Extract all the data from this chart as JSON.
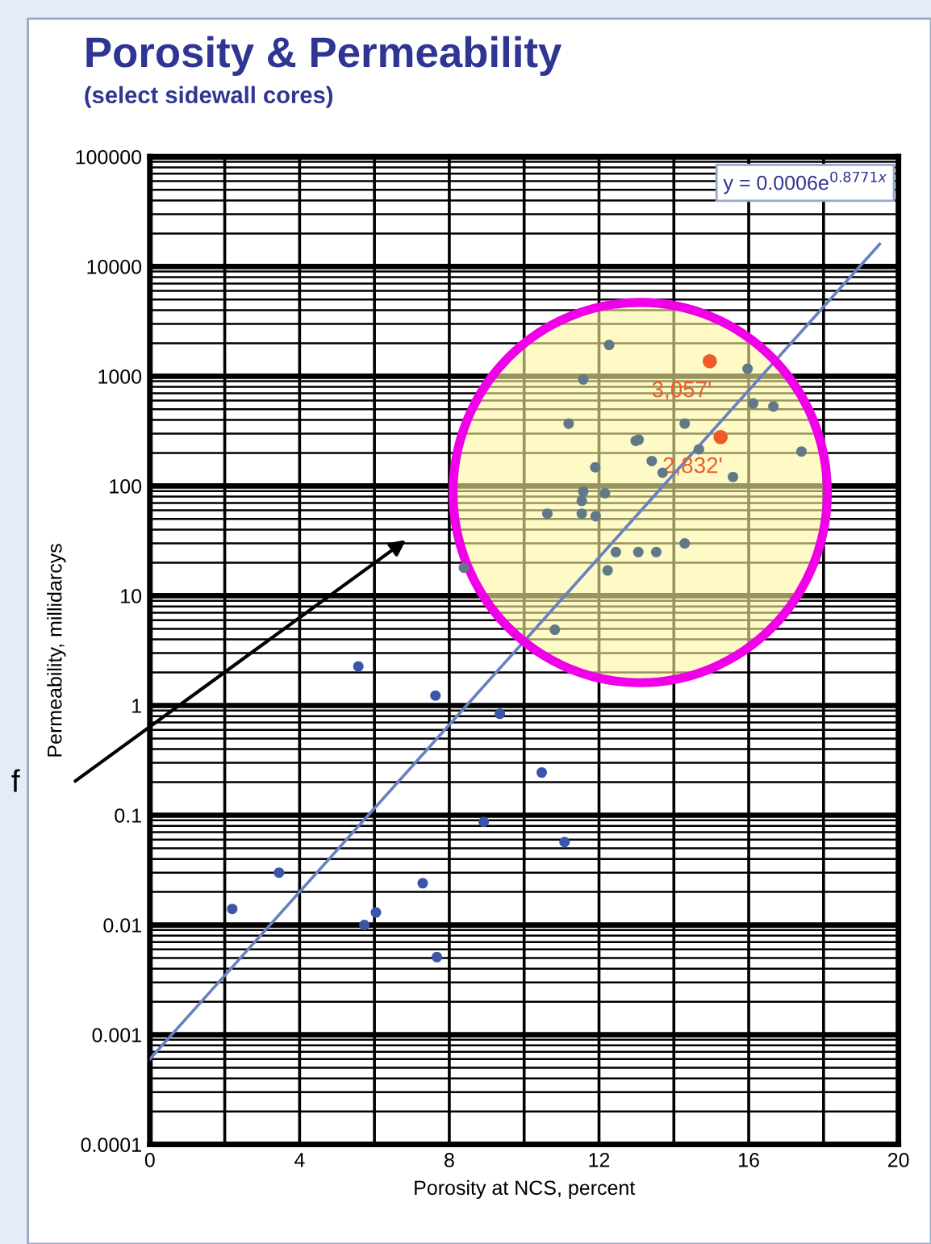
{
  "chart_data": {
    "type": "scatter",
    "title": "Porosity & Permeability",
    "subtitle": "(select sidewall cores)",
    "xlabel": "Porosity at NCS, percent",
    "ylabel": "Permeability, millidarcys",
    "log": "y",
    "grid": true,
    "marker": "circle",
    "xlim": [
      0,
      20
    ],
    "xticks": [
      0,
      {
        "value": 2,
        "label": null
      },
      4,
      {
        "value": 6,
        "label": null
      },
      8,
      {
        "value": 10,
        "label": null
      },
      12,
      {
        "value": 14,
        "label": null
      },
      16,
      {
        "value": 18,
        "label": null
      },
      20
    ],
    "ylim": [
      0.0001,
      100000
    ],
    "yticks": [
      {
        "value": 0.0001,
        "label": "0.0001"
      },
      {
        "value": 0.001,
        "label": "0.001"
      },
      {
        "value": 0.01,
        "label": "0.01"
      },
      {
        "value": 0.1,
        "label": "0.1"
      },
      {
        "value": 1,
        "label": "1"
      },
      {
        "value": 10,
        "label": "10"
      },
      {
        "value": 100,
        "label": "100"
      },
      {
        "value": 1000,
        "label": "1000"
      },
      {
        "value": 10000,
        "label": "10000"
      },
      {
        "value": 100000,
        "label": "100000"
      }
    ],
    "series": [
      {
        "color": "#3b55a8",
        "x": [
          5.57,
          7.63,
          9.35,
          10.47,
          8.92,
          11.08,
          3.45,
          7.29,
          2.2,
          6.04,
          5.73,
          7.67
        ],
        "values": [
          2.27,
          1.23,
          0.84,
          0.245,
          0.087,
          0.057,
          0.03,
          0.024,
          0.014,
          0.013,
          0.01,
          0.0051
        ]
      },
      {
        "color": "#607888",
        "x": [
          12.27,
          11.58,
          15.97,
          16.12,
          16.66,
          11.19,
          14.29,
          12.98,
          13.06,
          14.67,
          17.41,
          13.41,
          13.7,
          11.9,
          15.58,
          11.58,
          12.16,
          11.54,
          11.54,
          11.91,
          10.62,
          14.29,
          12.45,
          13.05,
          13.53,
          12.23,
          8.39,
          10.82
        ],
        "values": [
          1930,
          935,
          1170,
          565,
          530,
          370,
          370,
          258,
          264,
          216,
          206,
          169,
          132,
          148,
          121,
          89,
          86,
          73,
          56,
          53,
          56,
          30,
          25,
          25,
          25,
          17,
          18,
          4.9
        ]
      },
      {
        "color": "#f05a28",
        "x": [
          14.96,
          15.25
        ],
        "values": [
          1370,
          279
        ]
      },
      {
        "type": "line",
        "marker": "none",
        "color": "#6a80c0",
        "x": [
          0,
          19.5
        ],
        "values": [
          0.0006,
          16000
        ]
      }
    ],
    "annotations": [
      {
        "text": "3,057'",
        "x": 14.96,
        "y": 1370
      },
      {
        "text": "2,832'",
        "x": 15.25,
        "y": 279
      },
      "y = 0.0006e$^{0.8771x}$",
      "f"
    ]
  }
}
